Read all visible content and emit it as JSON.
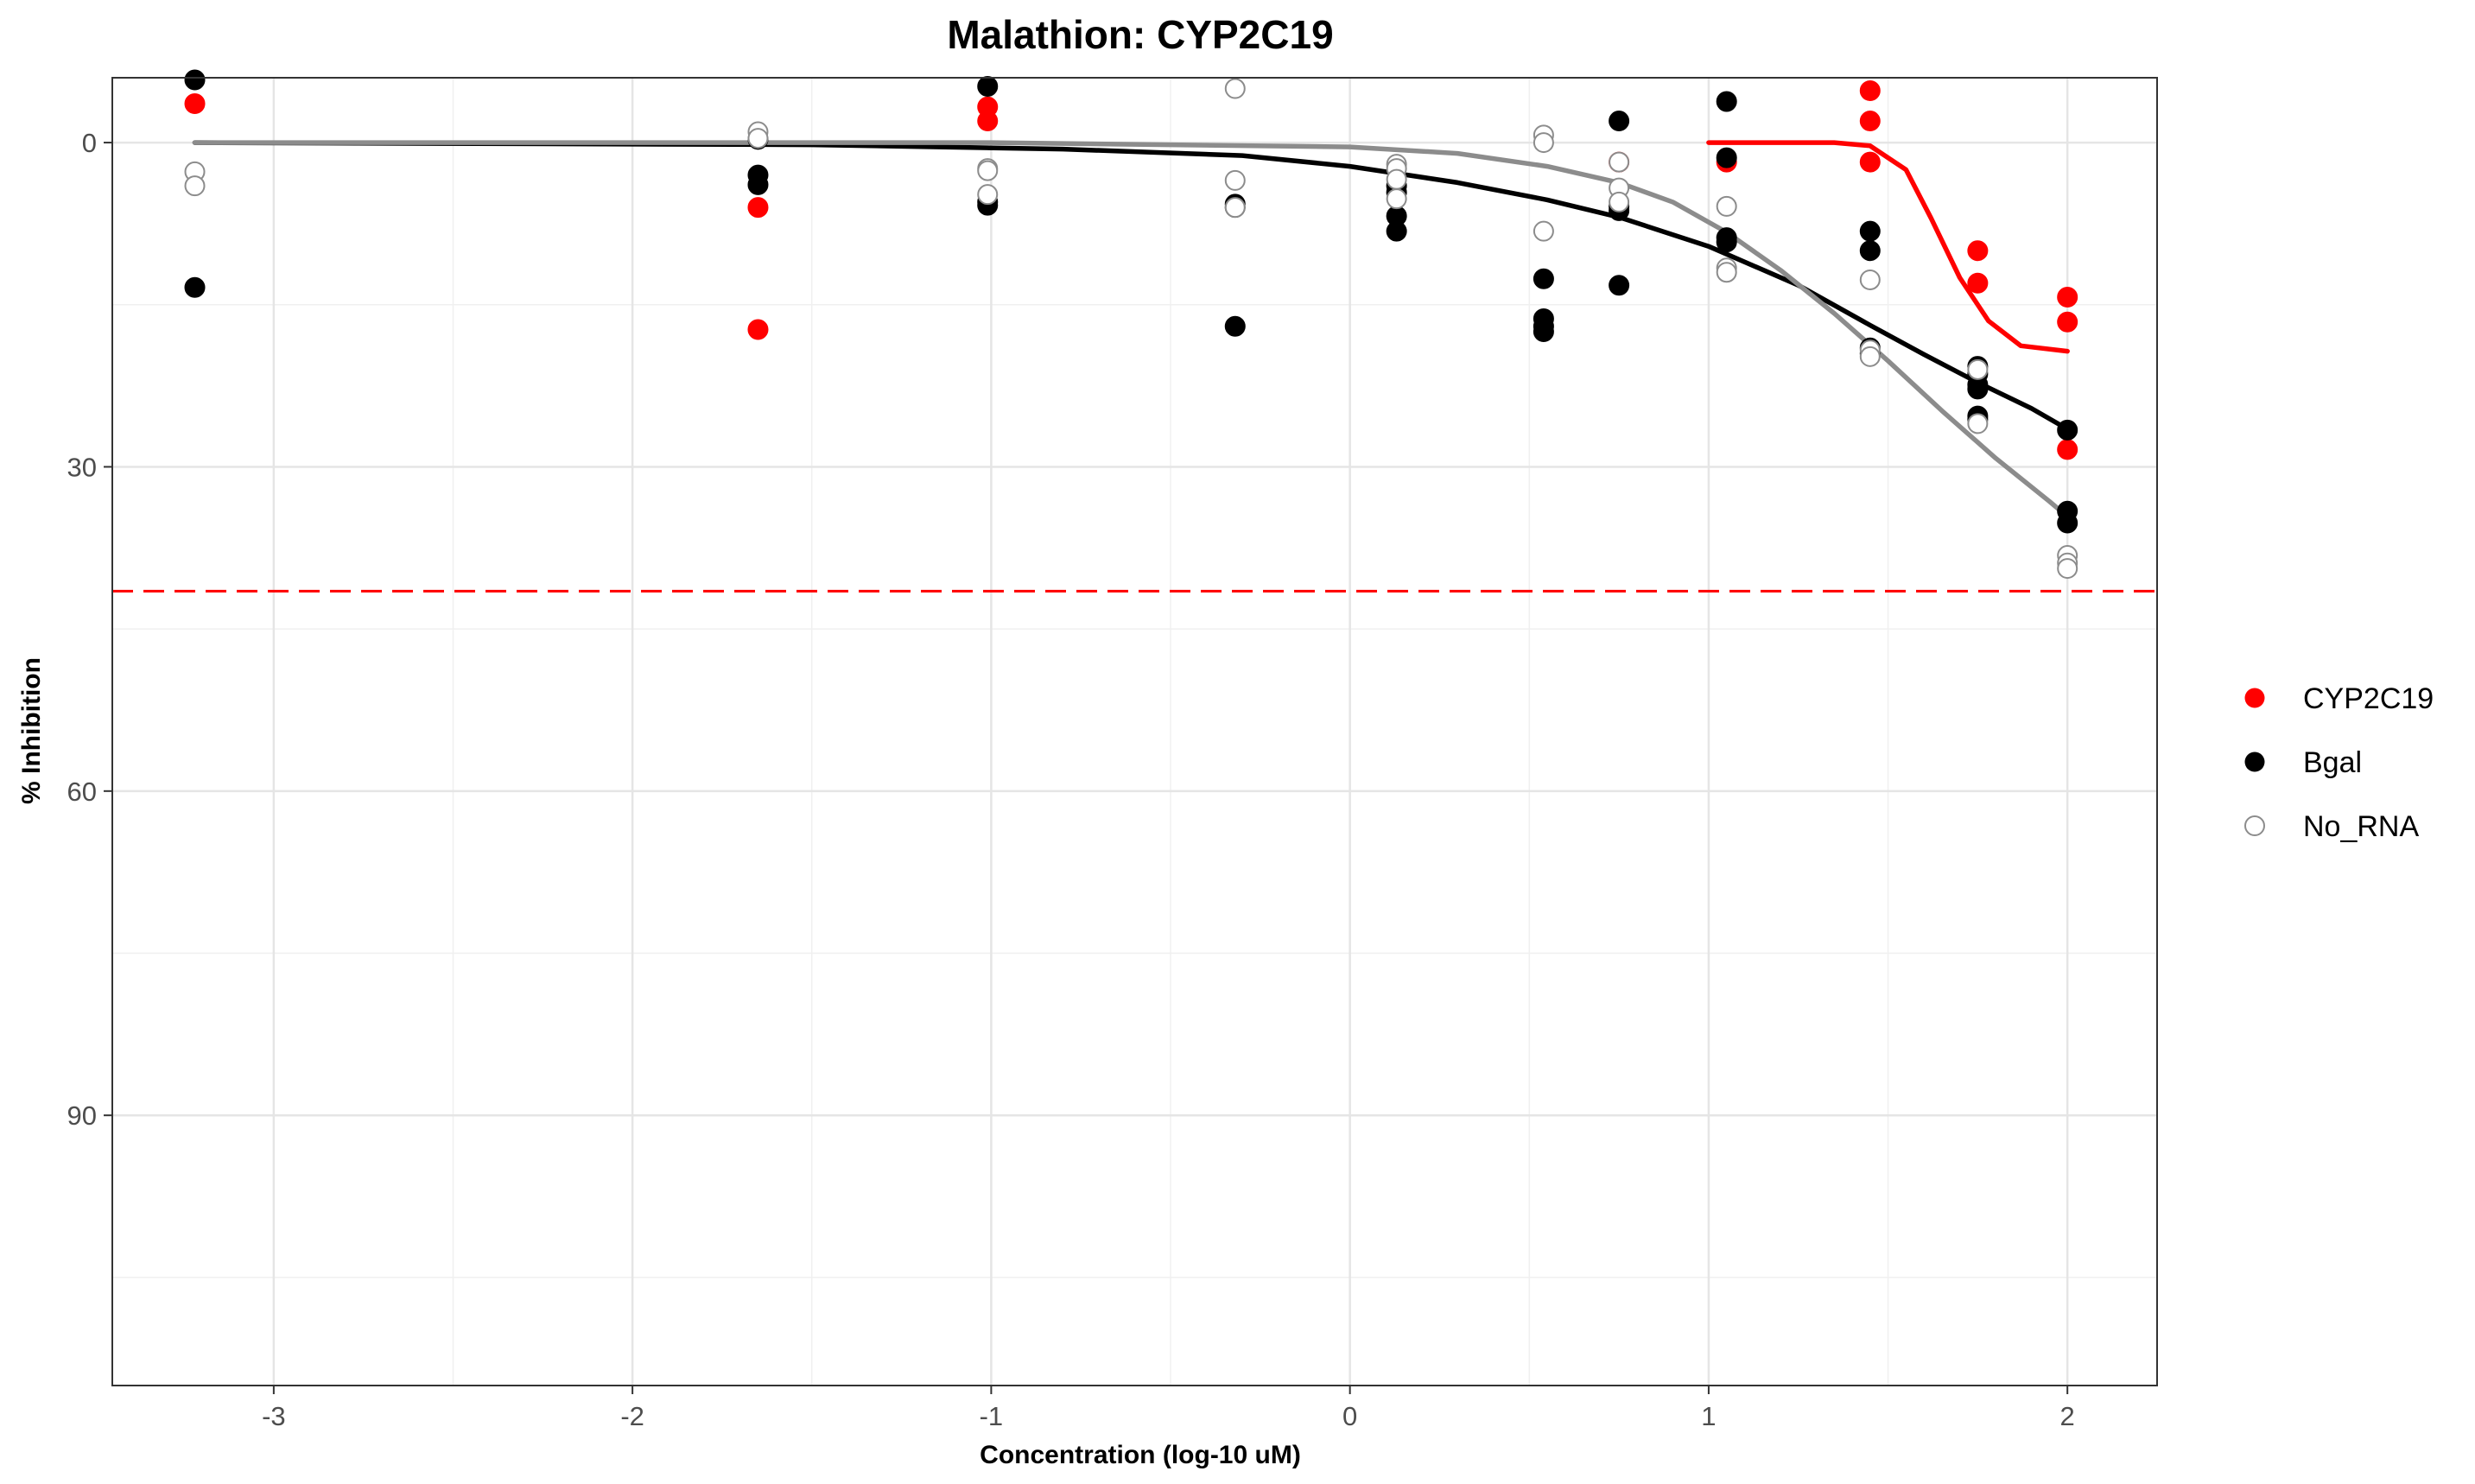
{
  "chart_data": {
    "type": "scatter",
    "title": "Malathion: CYP2C19",
    "xlabel": "Concentration (log-10 uM)",
    "ylabel": "% Inhibition",
    "xlim": [
      -3.45,
      2.25
    ],
    "ylim": [
      115,
      -6
    ],
    "y_reversed": true,
    "x_ticks": [
      -3,
      -2,
      -1,
      0,
      1,
      2
    ],
    "x_tick_labels": [
      "-3",
      "-2",
      "-1",
      "0",
      "1",
      "2"
    ],
    "y_ticks": [
      0,
      30,
      60,
      90
    ],
    "y_tick_labels": [
      "0",
      "30",
      "60",
      "90"
    ],
    "grid": true,
    "legend_position": "right",
    "threshold_line": {
      "y": 41.5,
      "color": "#ff0000",
      "style": "dashed"
    },
    "series": [
      {
        "name": "CYP2C19",
        "color": "#ff0000",
        "marker": "filled-circle",
        "points": [
          {
            "x": -3.22,
            "y": -3.6
          },
          {
            "x": -1.65,
            "y": 6.0
          },
          {
            "x": -1.65,
            "y": 17.3
          },
          {
            "x": -1.01,
            "y": -3.3
          },
          {
            "x": -1.01,
            "y": -2.0
          },
          {
            "x": 0.75,
            "y": 1.8
          },
          {
            "x": 1.05,
            "y": 1.8
          },
          {
            "x": 1.45,
            "y": -4.8
          },
          {
            "x": 1.45,
            "y": -2.0
          },
          {
            "x": 1.45,
            "y": 1.8
          },
          {
            "x": 1.75,
            "y": 10.0
          },
          {
            "x": 1.75,
            "y": 13.0
          },
          {
            "x": 2.0,
            "y": 14.3
          },
          {
            "x": 2.0,
            "y": 16.6
          },
          {
            "x": 2.0,
            "y": 28.4
          }
        ],
        "fit_curve": [
          {
            "x": 1.0,
            "y": 0.0
          },
          {
            "x": 1.35,
            "y": 0.0
          },
          {
            "x": 1.45,
            "y": 0.3
          },
          {
            "x": 1.55,
            "y": 2.5
          },
          {
            "x": 1.62,
            "y": 7.0
          },
          {
            "x": 1.7,
            "y": 12.5
          },
          {
            "x": 1.78,
            "y": 16.5
          },
          {
            "x": 1.87,
            "y": 18.8
          },
          {
            "x": 2.0,
            "y": 19.3
          }
        ]
      },
      {
        "name": "Bgal",
        "color": "#000000",
        "marker": "filled-circle",
        "points": [
          {
            "x": -3.22,
            "y": -5.8
          },
          {
            "x": -3.22,
            "y": 13.4
          },
          {
            "x": -1.65,
            "y": -0.3
          },
          {
            "x": -1.65,
            "y": 3.0
          },
          {
            "x": -1.65,
            "y": 3.9
          },
          {
            "x": -1.01,
            "y": -5.2
          },
          {
            "x": -1.01,
            "y": 5.5
          },
          {
            "x": -1.01,
            "y": 5.8
          },
          {
            "x": -0.32,
            "y": 5.7
          },
          {
            "x": -0.32,
            "y": 6.0
          },
          {
            "x": -0.32,
            "y": 17.0
          },
          {
            "x": 0.13,
            "y": 4.0
          },
          {
            "x": 0.13,
            "y": 4.6
          },
          {
            "x": 0.13,
            "y": 6.8
          },
          {
            "x": 0.13,
            "y": 8.2
          },
          {
            "x": 0.54,
            "y": 12.6
          },
          {
            "x": 0.54,
            "y": 16.3
          },
          {
            "x": 0.54,
            "y": 17.0
          },
          {
            "x": 0.54,
            "y": 17.5
          },
          {
            "x": 0.75,
            "y": -2.0
          },
          {
            "x": 0.75,
            "y": 5.9
          },
          {
            "x": 0.75,
            "y": 6.3
          },
          {
            "x": 0.75,
            "y": 13.2
          },
          {
            "x": 1.05,
            "y": -3.8
          },
          {
            "x": 1.05,
            "y": 1.4
          },
          {
            "x": 1.05,
            "y": 8.8
          },
          {
            "x": 1.05,
            "y": 9.2
          },
          {
            "x": 1.45,
            "y": 8.2
          },
          {
            "x": 1.45,
            "y": 10.0
          },
          {
            "x": 1.45,
            "y": 19.0
          },
          {
            "x": 1.45,
            "y": 19.5
          },
          {
            "x": 1.75,
            "y": 20.7
          },
          {
            "x": 1.75,
            "y": 21.4
          },
          {
            "x": 1.75,
            "y": 22.4
          },
          {
            "x": 1.75,
            "y": 22.8
          },
          {
            "x": 1.75,
            "y": 25.3
          },
          {
            "x": 1.75,
            "y": 25.6
          },
          {
            "x": 2.0,
            "y": 26.6
          },
          {
            "x": 2.0,
            "y": 34.1
          },
          {
            "x": 2.0,
            "y": 35.2
          }
        ],
        "fit_curve": [
          {
            "x": -3.22,
            "y": 0.0
          },
          {
            "x": -1.5,
            "y": 0.2
          },
          {
            "x": -0.8,
            "y": 0.6
          },
          {
            "x": -0.3,
            "y": 1.2
          },
          {
            "x": 0.0,
            "y": 2.2
          },
          {
            "x": 0.3,
            "y": 3.7
          },
          {
            "x": 0.55,
            "y": 5.3
          },
          {
            "x": 0.75,
            "y": 6.9
          },
          {
            "x": 1.0,
            "y": 9.6
          },
          {
            "x": 1.25,
            "y": 13.2
          },
          {
            "x": 1.45,
            "y": 16.9
          },
          {
            "x": 1.6,
            "y": 19.6
          },
          {
            "x": 1.75,
            "y": 22.2
          },
          {
            "x": 1.9,
            "y": 24.6
          },
          {
            "x": 2.0,
            "y": 26.5
          }
        ]
      },
      {
        "name": "No_RNA",
        "color": "#8c8c8c",
        "marker": "open-circle",
        "points": [
          {
            "x": -3.22,
            "y": 2.7
          },
          {
            "x": -3.22,
            "y": 4.0
          },
          {
            "x": -1.65,
            "y": -1.0
          },
          {
            "x": -1.65,
            "y": -0.4
          },
          {
            "x": -1.01,
            "y": 2.4
          },
          {
            "x": -1.01,
            "y": 2.6
          },
          {
            "x": -1.01,
            "y": 4.8
          },
          {
            "x": -0.32,
            "y": -5.0
          },
          {
            "x": -0.32,
            "y": 3.5
          },
          {
            "x": -0.32,
            "y": 6.0
          },
          {
            "x": 0.13,
            "y": 2.0
          },
          {
            "x": 0.13,
            "y": 2.4
          },
          {
            "x": 0.13,
            "y": 3.4
          },
          {
            "x": 0.13,
            "y": 5.2
          },
          {
            "x": 0.54,
            "y": -0.7
          },
          {
            "x": 0.54,
            "y": 0.0
          },
          {
            "x": 0.54,
            "y": 8.2
          },
          {
            "x": 0.75,
            "y": 1.8
          },
          {
            "x": 0.75,
            "y": 4.2
          },
          {
            "x": 0.75,
            "y": 5.5
          },
          {
            "x": 1.05,
            "y": 5.9
          },
          {
            "x": 1.05,
            "y": 11.6
          },
          {
            "x": 1.05,
            "y": 12.0
          },
          {
            "x": 1.45,
            "y": 12.7
          },
          {
            "x": 1.45,
            "y": 19.2
          },
          {
            "x": 1.45,
            "y": 19.8
          },
          {
            "x": 1.75,
            "y": 21.0
          },
          {
            "x": 1.75,
            "y": 26.0
          },
          {
            "x": 2.0,
            "y": 38.2
          },
          {
            "x": 2.0,
            "y": 38.9
          },
          {
            "x": 2.0,
            "y": 39.4
          }
        ],
        "fit_curve": [
          {
            "x": -3.22,
            "y": 0.0
          },
          {
            "x": -1.0,
            "y": 0.0
          },
          {
            "x": 0.0,
            "y": 0.4
          },
          {
            "x": 0.3,
            "y": 1.0
          },
          {
            "x": 0.55,
            "y": 2.2
          },
          {
            "x": 0.75,
            "y": 3.7
          },
          {
            "x": 0.9,
            "y": 5.5
          },
          {
            "x": 1.05,
            "y": 8.3
          },
          {
            "x": 1.2,
            "y": 11.8
          },
          {
            "x": 1.35,
            "y": 15.8
          },
          {
            "x": 1.5,
            "y": 20.2
          },
          {
            "x": 1.65,
            "y": 24.8
          },
          {
            "x": 1.8,
            "y": 29.2
          },
          {
            "x": 1.95,
            "y": 33.2
          },
          {
            "x": 2.0,
            "y": 34.6
          }
        ]
      }
    ]
  }
}
